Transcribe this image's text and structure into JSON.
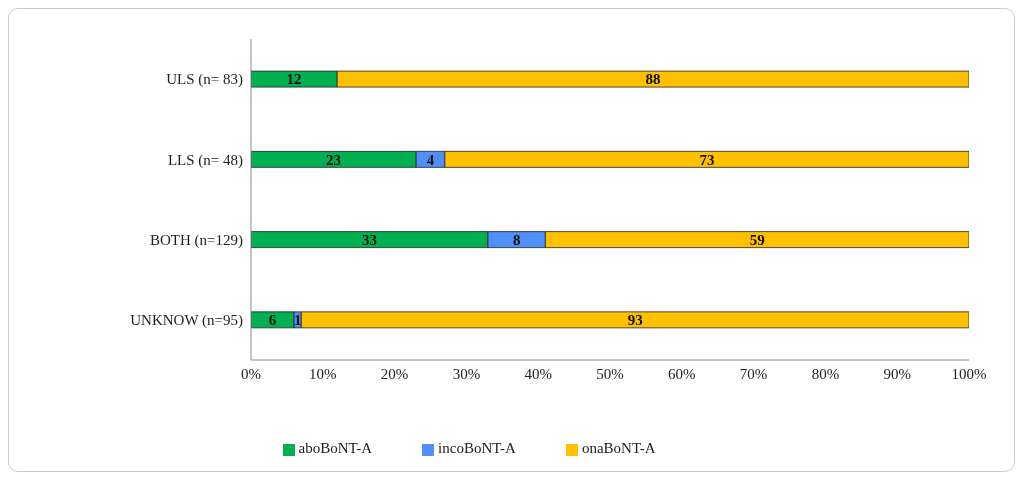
{
  "chart_data": {
    "type": "bar",
    "orientation": "horizontal",
    "stacked": true,
    "data_labels": true,
    "legend": "bottom",
    "grid": false,
    "categories": [
      "ULS (n= 83)",
      "LLS (n= 48)",
      "BOTH (n=129)",
      "UNKNOW (n=95)"
    ],
    "series": [
      {
        "name": "aboBoNT-A",
        "color": "#00b050",
        "values": [
          12,
          23,
          33,
          6
        ]
      },
      {
        "name": "incoBoNT-A",
        "color": "#4f8ff7",
        "values": [
          null,
          4,
          8,
          1
        ]
      },
      {
        "name": "onaBoNT-A",
        "color": "#ffc000",
        "values": [
          88,
          73,
          59,
          93
        ]
      }
    ],
    "xlim": [
      0,
      100
    ],
    "xticks": [
      {
        "value": 0,
        "label": "0%"
      },
      {
        "value": 10,
        "label": "10%"
      },
      {
        "value": 20,
        "label": "20%"
      },
      {
        "value": 30,
        "label": "30%"
      },
      {
        "value": 40,
        "label": "40%"
      },
      {
        "value": 50,
        "label": "50%"
      },
      {
        "value": 60,
        "label": "60%"
      },
      {
        "value": 70,
        "label": "70%"
      },
      {
        "value": 80,
        "label": "80%"
      },
      {
        "value": 90,
        "label": "90%"
      },
      {
        "value": 100,
        "label": "100%"
      }
    ]
  }
}
